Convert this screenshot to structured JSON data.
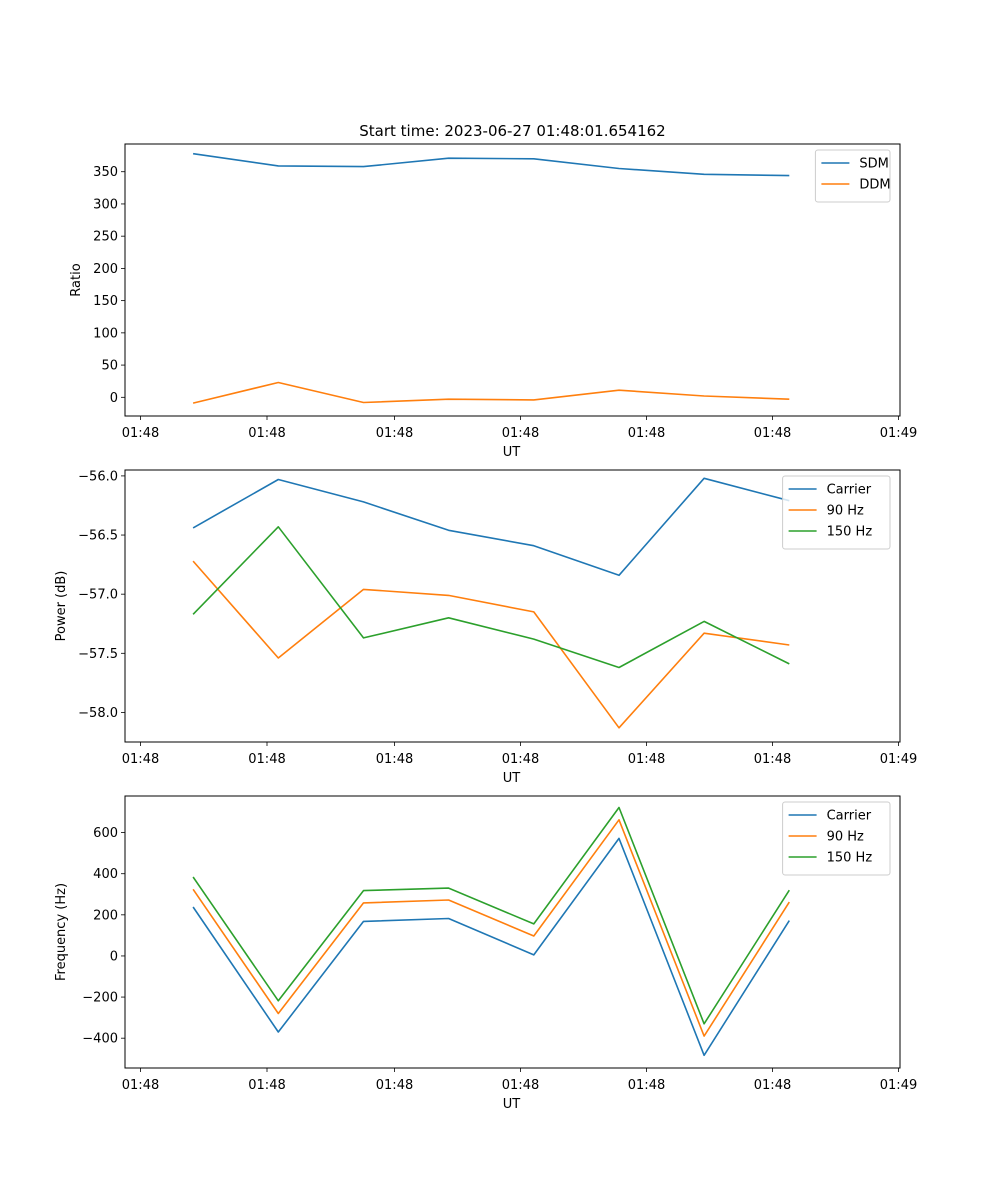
{
  "chart_data": [
    {
      "type": "line",
      "title": "Start time: 2023-06-27 01:48:01.654162",
      "xlabel": "UT",
      "ylabel": "Ratio",
      "x": [
        1,
        2,
        3,
        4,
        5,
        6,
        7,
        8
      ],
      "xlim": [
        0.2,
        9.3
      ],
      "x_tick_labels": [
        "01:48",
        "01:48",
        "01:48",
        "01:48",
        "01:48",
        "01:48",
        "01:49"
      ],
      "ylim": [
        -29,
        393
      ],
      "y_ticks": [
        0,
        50,
        100,
        150,
        200,
        250,
        300,
        350
      ],
      "legend_position": "top-right",
      "grid": false,
      "series": [
        {
          "name": "SDM",
          "color": "#1f77b4",
          "values": [
            378,
            359,
            358,
            371,
            370,
            355,
            346,
            344
          ]
        },
        {
          "name": "DDM",
          "color": "#ff7f0e",
          "values": [
            -9,
            23,
            -8,
            -3,
            -4,
            11,
            2,
            -3
          ]
        }
      ]
    },
    {
      "type": "line",
      "title": "",
      "xlabel": "UT",
      "ylabel": "Power (dB)",
      "x": [
        1,
        2,
        3,
        4,
        5,
        6,
        7,
        8
      ],
      "xlim": [
        0.2,
        9.3
      ],
      "x_tick_labels": [
        "01:48",
        "01:48",
        "01:48",
        "01:48",
        "01:48",
        "01:48",
        "01:49"
      ],
      "ylim": [
        -58.25,
        -55.95
      ],
      "y_ticks": [
        -58.0,
        -57.5,
        -57.0,
        -56.5,
        -56.0
      ],
      "y_tick_labels": [
        "−58.0",
        "−57.5",
        "−57.0",
        "−56.5",
        "−56.0"
      ],
      "legend_position": "top-right",
      "grid": false,
      "series": [
        {
          "name": "Carrier",
          "color": "#1f77b4",
          "values": [
            -56.44,
            -56.03,
            -56.22,
            -56.46,
            -56.59,
            -56.84,
            -56.02,
            -56.21
          ]
        },
        {
          "name": "90 Hz",
          "color": "#ff7f0e",
          "values": [
            -56.72,
            -57.54,
            -56.96,
            -57.01,
            -57.15,
            -58.13,
            -57.33,
            -57.43
          ]
        },
        {
          "name": "150 Hz",
          "color": "#2ca02c",
          "values": [
            -57.17,
            -56.43,
            -57.37,
            -57.2,
            -57.38,
            -57.62,
            -57.23,
            -57.59
          ]
        }
      ]
    },
    {
      "type": "line",
      "title": "",
      "xlabel": "UT",
      "ylabel": "Frequency (Hz)",
      "x": [
        1,
        2,
        3,
        4,
        5,
        6,
        7,
        8
      ],
      "xlim": [
        0.2,
        9.3
      ],
      "x_tick_labels": [
        "01:48",
        "01:48",
        "01:48",
        "01:48",
        "01:48",
        "01:48",
        "01:49"
      ],
      "ylim": [
        -545,
        778
      ],
      "y_ticks": [
        -400,
        -200,
        0,
        200,
        400,
        600
      ],
      "y_tick_labels": [
        "−400",
        "−200",
        "0",
        "200",
        "400",
        "600"
      ],
      "legend_position": "top-right",
      "grid": false,
      "series": [
        {
          "name": "Carrier",
          "color": "#1f77b4",
          "values": [
            238,
            -370,
            168,
            182,
            5,
            572,
            -483,
            172
          ]
        },
        {
          "name": "90 Hz",
          "color": "#ff7f0e",
          "values": [
            324,
            -280,
            258,
            272,
            97,
            662,
            -390,
            262
          ]
        },
        {
          "name": "150 Hz",
          "color": "#2ca02c",
          "values": [
            384,
            -218,
            318,
            330,
            156,
            722,
            -330,
            320
          ]
        }
      ]
    }
  ]
}
